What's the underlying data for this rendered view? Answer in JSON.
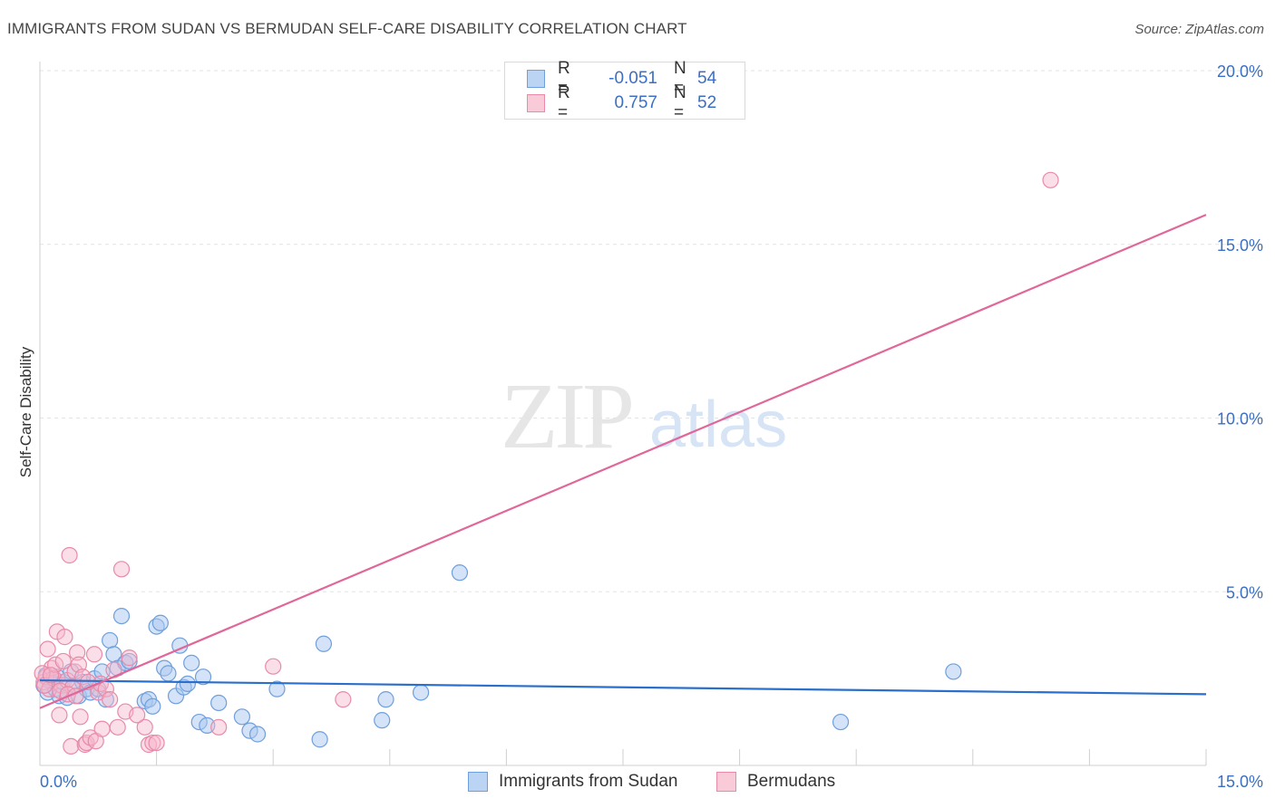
{
  "header": {
    "title": "IMMIGRANTS FROM SUDAN VS BERMUDAN SELF-CARE DISABILITY CORRELATION CHART",
    "source": "Source: ZipAtlas.com"
  },
  "watermark": {
    "zip": "ZIP",
    "atlas": "atlas"
  },
  "legend": {
    "rows": [
      {
        "r_label": "R =",
        "r_value": "-0.051",
        "n_label": "N =",
        "n_value": "54"
      },
      {
        "r_label": "R =",
        "r_value": "0.757",
        "n_label": "N =",
        "n_value": "52"
      }
    ]
  },
  "bottom_legend": {
    "series1": "Immigrants from Sudan",
    "series2": "Bermudans"
  },
  "colors": {
    "blue_fill": "#a9c8ef",
    "blue_stroke": "#6f9fdc",
    "blue_line": "#2a6fcb",
    "pink_fill": "#f6b9cc",
    "pink_stroke": "#e88aa8",
    "pink_line": "#e0679a",
    "axis_text": "#3a6fc4",
    "grid": "#e3e3e3"
  },
  "chart_data": {
    "type": "scatter",
    "title": "IMMIGRANTS FROM SUDAN VS BERMUDAN SELF-CARE DISABILITY CORRELATION CHART",
    "xlabel": "",
    "ylabel": "Self-Care Disability",
    "xlim": [
      0,
      15
    ],
    "ylim": [
      0,
      20
    ],
    "x_tick_labels": [
      "0.0%",
      "15.0%"
    ],
    "y_ticks": [
      5,
      10,
      15,
      20
    ],
    "y_tick_labels": [
      "5.0%",
      "10.0%",
      "15.0%",
      "20.0%"
    ],
    "grid": "horizontal dashed",
    "legend_position": "top-center",
    "series": [
      {
        "name": "Immigrants from Sudan",
        "color": "#a9c8ef",
        "trend": {
          "x": [
            0,
            15
          ],
          "y": [
            2.45,
            2.05
          ]
        },
        "points": [
          [
            0.05,
            2.3
          ],
          [
            0.1,
            2.1
          ],
          [
            0.15,
            2.5
          ],
          [
            0.2,
            2.2
          ],
          [
            0.25,
            2.0
          ],
          [
            0.3,
            2.4
          ],
          [
            0.35,
            1.95
          ],
          [
            0.4,
            2.7
          ],
          [
            0.45,
            2.3
          ],
          [
            0.5,
            2.0
          ],
          [
            0.55,
            2.4
          ],
          [
            0.6,
            2.2
          ],
          [
            0.65,
            2.1
          ],
          [
            0.7,
            2.5
          ],
          [
            0.75,
            2.2
          ],
          [
            0.8,
            2.7
          ],
          [
            0.85,
            1.9
          ],
          [
            0.9,
            3.6
          ],
          [
            0.95,
            3.2
          ],
          [
            1.0,
            2.8
          ],
          [
            1.05,
            4.3
          ],
          [
            1.1,
            2.95
          ],
          [
            1.15,
            3.0
          ],
          [
            1.35,
            1.85
          ],
          [
            1.4,
            1.9
          ],
          [
            1.45,
            1.7
          ],
          [
            1.5,
            4.0
          ],
          [
            1.55,
            4.1
          ],
          [
            1.6,
            2.8
          ],
          [
            1.65,
            2.65
          ],
          [
            1.75,
            2.0
          ],
          [
            1.8,
            3.45
          ],
          [
            1.85,
            2.25
          ],
          [
            1.9,
            2.35
          ],
          [
            1.95,
            2.95
          ],
          [
            2.05,
            1.25
          ],
          [
            2.1,
            2.55
          ],
          [
            2.15,
            1.15
          ],
          [
            2.3,
            1.8
          ],
          [
            2.6,
            1.4
          ],
          [
            2.7,
            1.0
          ],
          [
            2.8,
            0.9
          ],
          [
            3.05,
            2.2
          ],
          [
            3.6,
            0.75
          ],
          [
            3.65,
            3.5
          ],
          [
            4.4,
            1.3
          ],
          [
            4.45,
            1.9
          ],
          [
            4.9,
            2.1
          ],
          [
            5.4,
            5.55
          ],
          [
            10.3,
            1.25
          ],
          [
            11.75,
            2.7
          ],
          [
            0.08,
            2.6
          ],
          [
            0.12,
            2.45
          ],
          [
            0.22,
            2.55
          ]
        ]
      },
      {
        "name": "Bermudans",
        "color": "#f6b9cc",
        "trend": {
          "x": [
            0,
            15
          ],
          "y": [
            1.65,
            15.85
          ]
        },
        "points": [
          [
            0.05,
            2.4
          ],
          [
            0.08,
            2.55
          ],
          [
            0.1,
            3.35
          ],
          [
            0.12,
            2.2
          ],
          [
            0.15,
            2.8
          ],
          [
            0.18,
            2.5
          ],
          [
            0.2,
            2.9
          ],
          [
            0.22,
            3.85
          ],
          [
            0.25,
            1.45
          ],
          [
            0.28,
            2.3
          ],
          [
            0.3,
            3.0
          ],
          [
            0.32,
            3.7
          ],
          [
            0.35,
            2.45
          ],
          [
            0.38,
            6.05
          ],
          [
            0.4,
            0.55
          ],
          [
            0.42,
            2.25
          ],
          [
            0.45,
            2.7
          ],
          [
            0.48,
            3.25
          ],
          [
            0.5,
            2.9
          ],
          [
            0.52,
            1.4
          ],
          [
            0.55,
            2.55
          ],
          [
            0.58,
            0.6
          ],
          [
            0.6,
            0.65
          ],
          [
            0.65,
            0.8
          ],
          [
            0.7,
            3.2
          ],
          [
            0.72,
            0.7
          ],
          [
            0.75,
            2.1
          ],
          [
            0.78,
            2.35
          ],
          [
            0.8,
            1.05
          ],
          [
            0.85,
            2.2
          ],
          [
            0.9,
            1.9
          ],
          [
            0.95,
            2.75
          ],
          [
            1.0,
            1.1
          ],
          [
            1.05,
            5.65
          ],
          [
            1.1,
            1.55
          ],
          [
            1.15,
            3.1
          ],
          [
            1.35,
            1.1
          ],
          [
            1.4,
            0.6
          ],
          [
            1.45,
            0.65
          ],
          [
            1.5,
            0.65
          ],
          [
            2.3,
            1.1
          ],
          [
            3.0,
            2.85
          ],
          [
            3.9,
            1.9
          ],
          [
            13.0,
            16.85
          ],
          [
            0.03,
            2.65
          ],
          [
            0.06,
            2.3
          ],
          [
            0.14,
            2.6
          ],
          [
            0.26,
            2.15
          ],
          [
            0.36,
            2.05
          ],
          [
            0.46,
            2.0
          ],
          [
            0.62,
            2.4
          ],
          [
            1.25,
            1.45
          ]
        ]
      }
    ]
  }
}
